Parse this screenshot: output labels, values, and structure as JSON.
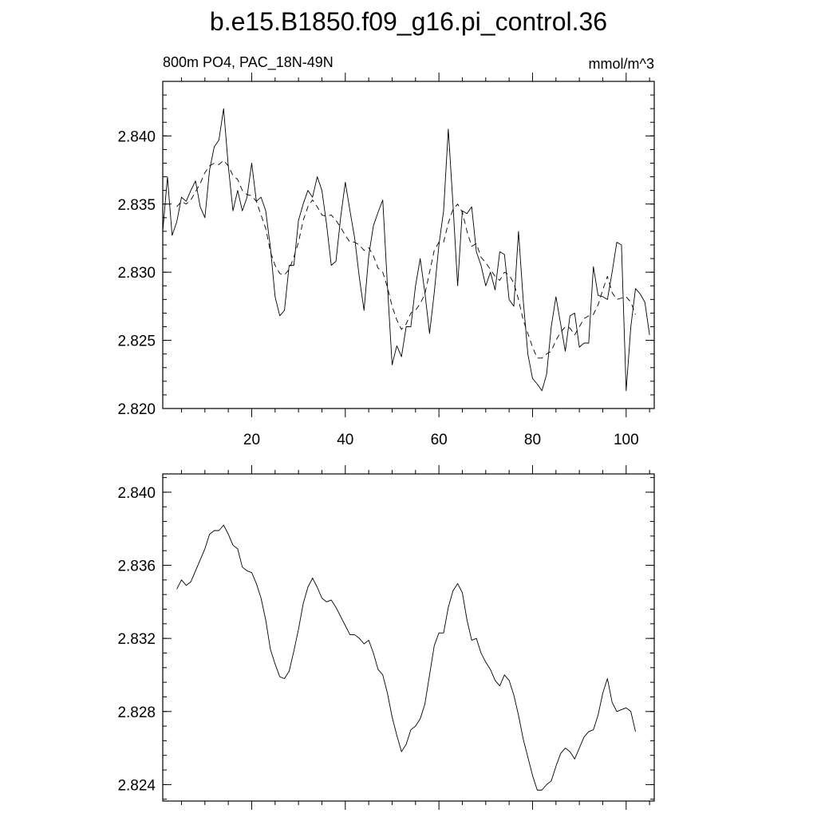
{
  "title": "b.e15.B1850.f09_g16.pi_control.36",
  "left_string": "800m PO4, PAC_18N-49N",
  "right_string": "mmol/m^3",
  "colors": {
    "line": "#000000",
    "background": "#ffffff"
  },
  "chart_data": [
    {
      "type": "line",
      "panel": "top",
      "xlim": [
        1,
        106
      ],
      "ylim": [
        2.82,
        2.844
      ],
      "x_ticks": [
        20,
        40,
        60,
        80,
        100
      ],
      "x_tick_labels": [
        "20",
        "40",
        "60",
        "80",
        "100"
      ],
      "y_ticks": [
        2.82,
        2.825,
        2.83,
        2.835,
        2.84
      ],
      "y_tick_labels": [
        "2.820",
        "2.825",
        "2.830",
        "2.835",
        "2.840"
      ],
      "x_start": 1,
      "series": [
        {
          "style": "solid",
          "values": [
            2.833,
            2.837,
            2.8327,
            2.8337,
            2.8355,
            2.8352,
            2.836,
            2.8367,
            2.8348,
            2.834,
            2.8375,
            2.8392,
            2.8397,
            2.842,
            2.8378,
            2.8345,
            2.836,
            2.8345,
            2.8355,
            2.838,
            2.8352,
            2.8355,
            2.8345,
            2.8318,
            2.8282,
            2.8268,
            2.8272,
            2.8305,
            2.8305,
            2.8338,
            2.835,
            2.836,
            2.8355,
            2.837,
            2.836,
            2.8335,
            2.8305,
            2.8308,
            2.834,
            2.8366,
            2.8345,
            2.8325,
            2.8296,
            2.8272,
            2.8312,
            2.8334,
            2.8344,
            2.8353,
            2.829,
            2.8232,
            2.8246,
            2.8238,
            2.826,
            2.826,
            2.829,
            2.831,
            2.8285,
            2.8255,
            2.8285,
            2.832,
            2.8345,
            2.8405,
            2.835,
            2.829,
            2.8345,
            2.8343,
            2.8348,
            2.8315,
            2.8305,
            2.829,
            2.83,
            2.8287,
            2.8315,
            2.8313,
            2.828,
            2.8275,
            2.833,
            2.828,
            2.824,
            2.8222,
            2.8218,
            2.8213,
            2.8225,
            2.826,
            2.8282,
            2.8262,
            2.8242,
            2.8268,
            2.827,
            2.8245,
            2.8248,
            2.8248,
            2.8304,
            2.8283,
            2.8282,
            2.828,
            2.83,
            2.8322,
            2.832,
            2.8213,
            2.826,
            2.8288,
            2.8284,
            2.8278,
            2.8254
          ]
        },
        {
          "style": "dashed",
          "values": [
            null,
            null,
            null,
            2.8348,
            2.8352,
            2.835,
            2.8353,
            2.8359,
            2.8365,
            2.8373,
            2.8378,
            2.838,
            2.8379,
            2.8382,
            2.8378,
            2.8371,
            2.8368,
            2.836,
            2.8357,
            2.8356,
            2.8352,
            2.8342,
            2.8332,
            2.8315,
            2.8305,
            2.8299,
            2.8298,
            2.8302,
            2.8311,
            2.8322,
            2.8338,
            2.8348,
            2.8353,
            2.8348,
            2.8342,
            2.8341,
            2.8342,
            2.8338,
            2.8333,
            2.8327,
            2.8322,
            2.8322,
            2.832,
            2.8316,
            2.8318,
            2.8312,
            2.8303,
            2.83,
            2.8289,
            2.8275,
            2.8265,
            2.8258,
            2.8262,
            2.827,
            2.8272,
            2.8277,
            2.8284,
            2.83,
            2.8316,
            2.8322,
            2.8322,
            2.8336,
            2.8346,
            2.835,
            2.8344,
            2.833,
            2.8319,
            2.8321,
            2.8311,
            2.8307,
            2.8302,
            2.8297,
            2.8294,
            2.83,
            2.8298,
            2.8292,
            2.828,
            2.8265,
            2.8255,
            2.8245,
            2.8237,
            2.8237,
            2.824,
            2.8242,
            2.825,
            2.8256,
            2.826,
            2.8259,
            2.8254,
            2.826,
            2.8266,
            2.8268,
            2.8269,
            2.8276,
            2.8287,
            2.8297,
            2.8285,
            2.828,
            2.8281,
            2.8282,
            2.8278,
            2.8269,
            null,
            null,
            null,
            null
          ]
        }
      ]
    },
    {
      "type": "line",
      "panel": "bottom",
      "xlim": [
        1,
        106
      ],
      "ylim": [
        2.8231,
        2.841
      ],
      "x_ticks": [
        20,
        40,
        60,
        80,
        100
      ],
      "x_tick_labels": [],
      "y_ticks": [
        2.824,
        2.828,
        2.832,
        2.836,
        2.84
      ],
      "y_tick_labels": [
        "2.824",
        "2.828",
        "2.832",
        "2.836",
        "2.840"
      ],
      "x_start": 1,
      "series": [
        {
          "style": "solid",
          "values": [
            null,
            null,
            null,
            2.8347,
            2.8352,
            2.8349,
            2.8351,
            2.8357,
            2.8363,
            2.8369,
            2.8377,
            2.8379,
            2.8379,
            2.8382,
            2.8377,
            2.8371,
            2.8369,
            2.8359,
            2.8357,
            2.8356,
            2.835,
            2.8342,
            2.833,
            2.8314,
            2.8306,
            2.8299,
            2.8298,
            2.8302,
            2.8313,
            2.8325,
            2.8339,
            2.8348,
            2.8353,
            2.8348,
            2.8342,
            2.834,
            2.8341,
            2.8337,
            2.8332,
            2.8327,
            2.8322,
            2.8322,
            2.832,
            2.8317,
            2.8319,
            2.8312,
            2.8303,
            2.83,
            2.829,
            2.8277,
            2.8267,
            2.8258,
            2.8262,
            2.827,
            2.8272,
            2.8276,
            2.8284,
            2.83,
            2.8316,
            2.8323,
            2.8323,
            2.8337,
            2.8346,
            2.835,
            2.8345,
            2.833,
            2.8319,
            2.832,
            2.8312,
            2.8307,
            2.8303,
            2.8297,
            2.8294,
            2.83,
            2.8297,
            2.8289,
            2.8278,
            2.8265,
            2.8255,
            2.8245,
            2.8237,
            2.8237,
            2.824,
            2.8242,
            2.825,
            2.8257,
            2.826,
            2.8258,
            2.8254,
            2.826,
            2.8266,
            2.8269,
            2.827,
            2.8278,
            2.829,
            2.8298,
            2.8285,
            2.828,
            2.8281,
            2.8282,
            2.828,
            2.8269,
            null,
            null,
            null,
            null
          ]
        }
      ]
    }
  ]
}
